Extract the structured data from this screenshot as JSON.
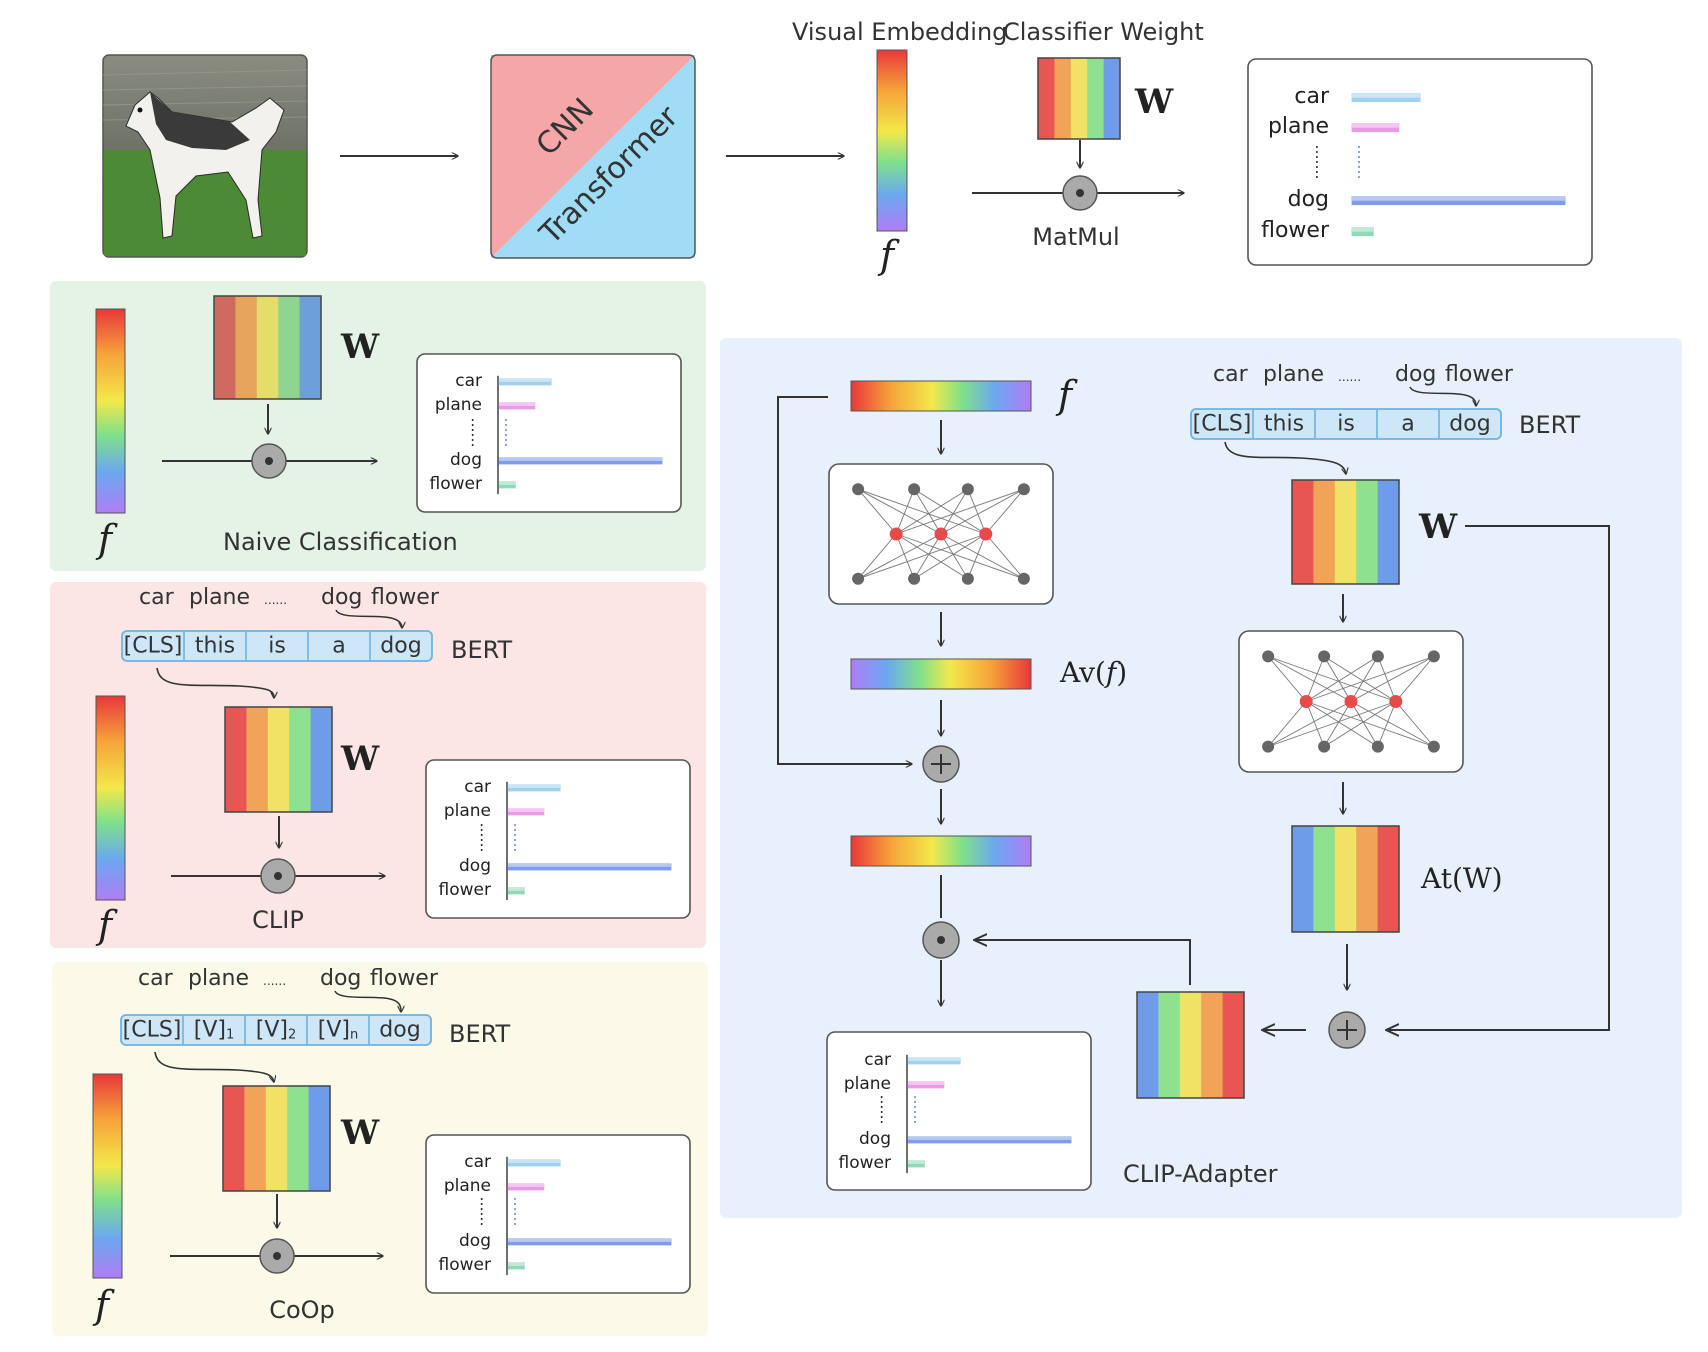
{
  "top": {
    "cnn_label": "CNN",
    "transformer_label": "Transformer",
    "visual_embedding_label": "Visual Embedding",
    "classifier_weight_label": "Classifier Weight",
    "matmul_label": "MatMul",
    "f_symbol": "f",
    "w_symbol": "W"
  },
  "class_labels": [
    "car",
    "plane",
    "dog",
    "flower"
  ],
  "class_scores": [
    0.32,
    0.22,
    1.0,
    0.1
  ],
  "word_list": {
    "first": "car",
    "second": "plane",
    "ellipsis": "......",
    "third": "dog",
    "fourth": "flower"
  },
  "panels": {
    "naive": {
      "title": "Naive Classification"
    },
    "clip": {
      "title": "CLIP",
      "tokens": [
        "[CLS]",
        "this",
        "is",
        "a",
        "dog"
      ],
      "encoder": "BERT"
    },
    "coop": {
      "title": "CoOp",
      "tokens": [
        "[CLS]",
        "[V]",
        "[V]",
        "[V]",
        "dog"
      ],
      "token_subs": [
        "",
        "1",
        "2",
        "n",
        ""
      ],
      "encoder": "BERT"
    },
    "adapter": {
      "title": "CLIP-Adapter",
      "tokens": [
        "[CLS]",
        "this",
        "is",
        "a",
        "dog"
      ],
      "encoder": "BERT",
      "av_label": "Av(",
      "av_arg": "f",
      "av_close": ")",
      "at_label": "At(W)"
    }
  },
  "colors": {
    "naive_bg": "#e5f2e6",
    "clip_bg": "#fbe5e5",
    "coop_bg": "#fbf9e7",
    "adapter_bg": "#e8f1fb",
    "cnn": "#f4a6a8",
    "transformer": "#9fdcf6",
    "token_fill": "#cde6f8",
    "token_stroke": "#6fb2e0"
  }
}
